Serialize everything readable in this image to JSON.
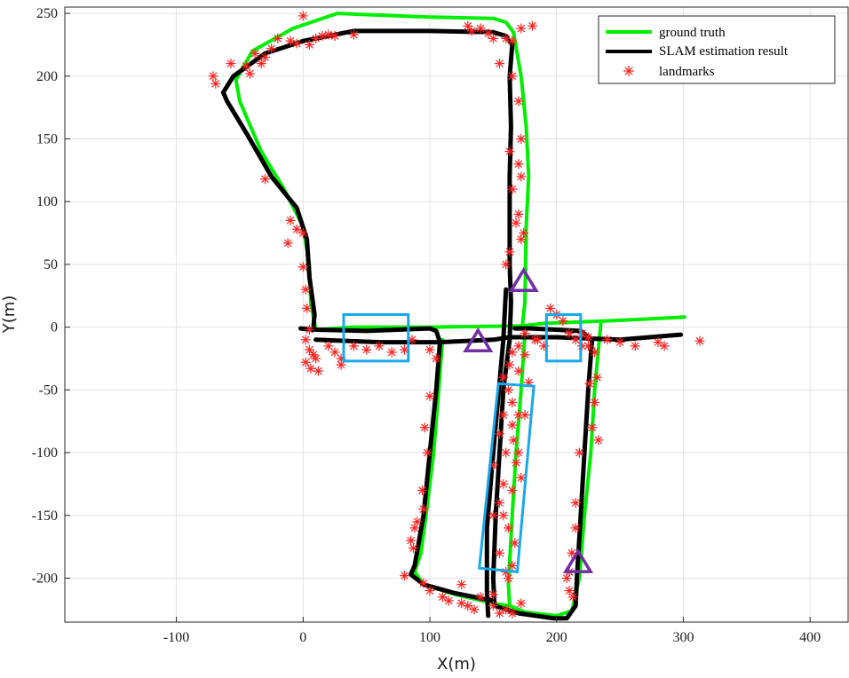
{
  "chart_data": {
    "type": "line",
    "xlabel": "X(m)",
    "ylabel": "Y(m)",
    "xlim": [
      -188,
      430
    ],
    "ylim": [
      -235,
      255
    ],
    "xticks": [
      -100,
      0,
      100,
      200,
      300,
      400
    ],
    "yticks": [
      -200,
      -150,
      -100,
      -50,
      0,
      50,
      100,
      150,
      200,
      250
    ],
    "grid": true,
    "legend_position": "top-right",
    "series": [
      {
        "name": "ground truth",
        "kind": "line",
        "color": "#00ee00",
        "points": [
          [
            10,
            -2
          ],
          [
            6,
            20
          ],
          [
            5,
            50
          ],
          [
            0,
            80
          ],
          [
            -15,
            110
          ],
          [
            -33,
            140
          ],
          [
            -50,
            180
          ],
          [
            -53,
            197
          ],
          [
            -40,
            220
          ],
          [
            -8,
            238
          ],
          [
            27,
            250
          ],
          [
            50,
            249
          ],
          [
            100,
            247
          ],
          [
            150,
            246
          ],
          [
            160,
            243
          ],
          [
            166,
            235
          ],
          [
            172,
            200
          ],
          [
            176,
            160
          ],
          [
            178,
            120
          ],
          [
            176,
            80
          ],
          [
            175,
            20
          ],
          [
            173,
            1
          ],
          [
            190,
            3
          ],
          [
            240,
            5
          ],
          [
            301,
            8
          ]
        ]
      },
      {
        "name": "",
        "kind": "line",
        "color": "#00ee00",
        "points": [
          [
            173,
            1
          ],
          [
            100,
            0
          ],
          [
            40,
            0
          ],
          [
            10,
            -2
          ]
        ]
      },
      {
        "name": "",
        "kind": "line",
        "color": "#00ee00",
        "points": [
          [
            175,
            -5
          ],
          [
            172,
            -50
          ],
          [
            168,
            -100
          ],
          [
            165,
            -150
          ],
          [
            162,
            -205
          ],
          [
            163,
            -222
          ],
          [
            175,
            -227
          ],
          [
            200,
            -230
          ],
          [
            212,
            -226
          ],
          [
            218,
            -200
          ],
          [
            222,
            -150
          ],
          [
            227,
            -100
          ],
          [
            230,
            -50
          ],
          [
            235,
            4
          ]
        ]
      },
      {
        "name": "",
        "kind": "line",
        "color": "#00ee00",
        "points": [
          [
            110,
            -10
          ],
          [
            107,
            -50
          ],
          [
            103,
            -100
          ],
          [
            97,
            -150
          ],
          [
            93,
            -180
          ],
          [
            88,
            -195
          ],
          [
            95,
            -205
          ],
          [
            120,
            -213
          ],
          [
            150,
            -220
          ],
          [
            162,
            -222
          ]
        ]
      },
      {
        "name": "SLAM estimation result",
        "kind": "line",
        "color": "#000000",
        "points": [
          [
            -2,
            -1
          ],
          [
            8,
            -2
          ],
          [
            9,
            10
          ],
          [
            5,
            40
          ],
          [
            3,
            70
          ],
          [
            -5,
            95
          ],
          [
            -25,
            120
          ],
          [
            -45,
            155
          ],
          [
            -60,
            180
          ],
          [
            -63,
            187
          ],
          [
            -55,
            200
          ],
          [
            -30,
            218
          ],
          [
            0,
            228
          ],
          [
            40,
            236
          ],
          [
            100,
            236
          ],
          [
            150,
            235
          ],
          [
            160,
            232
          ],
          [
            165,
            225
          ],
          [
            163,
            200
          ],
          [
            164,
            160
          ],
          [
            163,
            120
          ],
          [
            163,
            80
          ],
          [
            163,
            50
          ],
          [
            164,
            20
          ],
          [
            163,
            -10
          ],
          [
            158,
            -50
          ],
          [
            155,
            -100
          ],
          [
            152,
            -150
          ],
          [
            150,
            -200
          ],
          [
            151,
            -222
          ],
          [
            170,
            -228
          ],
          [
            198,
            -232
          ],
          [
            208,
            -232
          ],
          [
            215,
            -222
          ],
          [
            216,
            -200
          ],
          [
            219,
            -150
          ],
          [
            222,
            -100
          ],
          [
            225,
            -50
          ],
          [
            228,
            -10
          ],
          [
            219,
            -3
          ],
          [
            180,
            -1
          ],
          [
            167,
            -1
          ]
        ]
      },
      {
        "name": "",
        "kind": "line",
        "color": "#000000",
        "points": [
          [
            10,
            -2
          ],
          [
            50,
            -3
          ],
          [
            100,
            -1
          ],
          [
            105,
            -3
          ],
          [
            108,
            -12
          ],
          [
            105,
            -50
          ],
          [
            100,
            -100
          ],
          [
            95,
            -150
          ],
          [
            88,
            -190
          ],
          [
            85,
            -197
          ],
          [
            95,
            -205
          ],
          [
            120,
            -212
          ],
          [
            150,
            -218
          ]
        ]
      },
      {
        "name": "",
        "kind": "line",
        "color": "#000000",
        "points": [
          [
            10,
            -10
          ],
          [
            60,
            -12
          ],
          [
            108,
            -12
          ],
          [
            150,
            -10
          ],
          [
            163,
            -8
          ],
          [
            200,
            -8
          ],
          [
            250,
            -10
          ],
          [
            298,
            -6
          ]
        ]
      },
      {
        "name": "",
        "kind": "line",
        "color": "#000000",
        "points": [
          [
            160,
            30
          ],
          [
            158,
            -10
          ],
          [
            150,
            -100
          ],
          [
            145,
            -160
          ],
          [
            145,
            -210
          ],
          [
            146,
            -230
          ]
        ]
      },
      {
        "name": "landmarks",
        "kind": "scatter",
        "color": "#ff2222",
        "points": [
          [
            -71,
            200
          ],
          [
            -69,
            194
          ],
          [
            -57,
            210
          ],
          [
            -45,
            208
          ],
          [
            -42,
            202
          ],
          [
            -33,
            210
          ],
          [
            -38,
            218
          ],
          [
            -30,
            215
          ],
          [
            -25,
            222
          ],
          [
            -20,
            230
          ],
          [
            -10,
            228
          ],
          [
            -5,
            226
          ],
          [
            0,
            248
          ],
          [
            5,
            225
          ],
          [
            10,
            230
          ],
          [
            15,
            232
          ],
          [
            20,
            233
          ],
          [
            25,
            232
          ],
          [
            40,
            233
          ],
          [
            130,
            240
          ],
          [
            133,
            236
          ],
          [
            140,
            238
          ],
          [
            146,
            234
          ],
          [
            150,
            230
          ],
          [
            160,
            230
          ],
          [
            165,
            228
          ],
          [
            172,
            238
          ],
          [
            181,
            240
          ],
          [
            155,
            210
          ],
          [
            165,
            200
          ],
          [
            170,
            180
          ],
          [
            172,
            150
          ],
          [
            163,
            140
          ],
          [
            170,
            130
          ],
          [
            172,
            120
          ],
          [
            165,
            110
          ],
          [
            170,
            90
          ],
          [
            168,
            83
          ],
          [
            174,
            75
          ],
          [
            172,
            70
          ],
          [
            163,
            60
          ],
          [
            160,
            50
          ],
          [
            -30,
            118
          ],
          [
            -10,
            85
          ],
          [
            -5,
            78
          ],
          [
            0,
            75
          ],
          [
            -12,
            67
          ],
          [
            0,
            48
          ],
          [
            2,
            30
          ],
          [
            3,
            15
          ],
          [
            5,
            -2
          ],
          [
            2,
            -10
          ],
          [
            5,
            -18
          ],
          [
            8,
            -22
          ],
          [
            2,
            -28
          ],
          [
            6,
            -33
          ],
          [
            12,
            -35
          ],
          [
            10,
            -25
          ],
          [
            20,
            -15
          ],
          [
            25,
            -20
          ],
          [
            30,
            -25
          ],
          [
            30,
            -30
          ],
          [
            40,
            -15
          ],
          [
            50,
            -18
          ],
          [
            60,
            -15
          ],
          [
            70,
            -20
          ],
          [
            80,
            -18
          ],
          [
            86,
            -10
          ],
          [
            100,
            -18
          ],
          [
            105,
            -25
          ],
          [
            100,
            -55
          ],
          [
            96,
            -80
          ],
          [
            98,
            -100
          ],
          [
            94,
            -130
          ],
          [
            95,
            -145
          ],
          [
            90,
            -155
          ],
          [
            88,
            -160
          ],
          [
            85,
            -170
          ],
          [
            87,
            -176
          ],
          [
            80,
            -198
          ],
          [
            95,
            -204
          ],
          [
            100,
            -210
          ],
          [
            110,
            -215
          ],
          [
            115,
            -218
          ],
          [
            125,
            -220
          ],
          [
            130,
            -222
          ],
          [
            135,
            -225
          ],
          [
            125,
            -205
          ],
          [
            140,
            -215
          ],
          [
            150,
            -222
          ],
          [
            155,
            -228
          ],
          [
            160,
            -225
          ],
          [
            165,
            -228
          ],
          [
            172,
            -220
          ],
          [
            160,
            -195
          ],
          [
            165,
            -190
          ],
          [
            155,
            -180
          ],
          [
            162,
            -160
          ],
          [
            150,
            -150
          ],
          [
            155,
            -140
          ],
          [
            165,
            -130
          ],
          [
            158,
            -125
          ],
          [
            150,
            -110
          ],
          [
            160,
            -100
          ],
          [
            170,
            -100
          ],
          [
            155,
            -85
          ],
          [
            165,
            -78
          ],
          [
            158,
            -70
          ],
          [
            170,
            -70
          ],
          [
            175,
            -70
          ],
          [
            165,
            -60
          ],
          [
            162,
            -50
          ],
          [
            158,
            -40
          ],
          [
            170,
            -35
          ],
          [
            163,
            -30
          ],
          [
            165,
            -20
          ],
          [
            170,
            -15
          ],
          [
            175,
            -5
          ],
          [
            185,
            -10
          ],
          [
            190,
            -15
          ],
          [
            195,
            15
          ],
          [
            200,
            10
          ],
          [
            205,
            5
          ],
          [
            210,
            -5
          ],
          [
            215,
            -10
          ],
          [
            220,
            -15
          ],
          [
            225,
            -15
          ],
          [
            230,
            -20
          ],
          [
            240,
            -10
          ],
          [
            250,
            -12
          ],
          [
            262,
            -15
          ],
          [
            280,
            -12
          ],
          [
            285,
            -15
          ],
          [
            313,
            -11
          ],
          [
            226,
            -45
          ],
          [
            232,
            -40
          ],
          [
            230,
            -60
          ],
          [
            228,
            -80
          ],
          [
            233,
            -90
          ],
          [
            218,
            -100
          ],
          [
            215,
            -140
          ],
          [
            215,
            -160
          ],
          [
            212,
            -180
          ],
          [
            210,
            -195
          ],
          [
            208,
            -200
          ],
          [
            210,
            -210
          ],
          [
            213,
            -215
          ],
          [
            175,
            -22
          ],
          [
            183,
            -10
          ],
          [
            178,
            -44
          ],
          [
            166,
            -90
          ],
          [
            168,
            -108
          ],
          [
            172,
            -120
          ],
          [
            158,
            -150
          ],
          [
            167,
            -172
          ],
          [
            162,
            -200
          ],
          [
            150,
            -213
          ],
          [
            220,
            -5
          ],
          [
            225,
            -8
          ]
        ]
      }
    ],
    "annotations": [
      {
        "shape": "rectangle",
        "color": "#18a8e8",
        "x": [
          32,
          83
        ],
        "y": [
          -27,
          10
        ]
      },
      {
        "shape": "rectangle",
        "color": "#18a8e8",
        "x": [
          192,
          219
        ],
        "y": [
          -27,
          10
        ]
      },
      {
        "shape": "rotated-rectangle",
        "color": "#18a8e8",
        "corners": [
          [
            154,
            -45
          ],
          [
            182,
            -47
          ],
          [
            169,
            -195
          ],
          [
            139,
            -192
          ]
        ]
      },
      {
        "shape": "triangle",
        "color": "#7030a0",
        "x": 138,
        "y": -11
      },
      {
        "shape": "triangle",
        "color": "#7030a0",
        "x": 174,
        "y": 37
      },
      {
        "shape": "triangle",
        "color": "#7030a0",
        "x": 217,
        "y": -187
      }
    ]
  }
}
